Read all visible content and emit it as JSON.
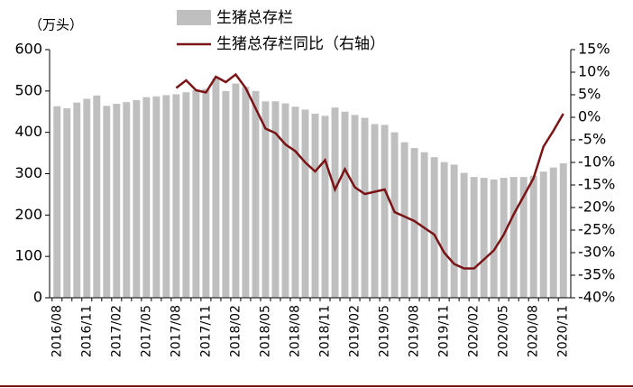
{
  "chart_data": {
    "type": "bar_line",
    "unit_label": "（万头）",
    "categories": [
      "2016/08",
      null,
      null,
      "2016/11",
      null,
      null,
      "2017/02",
      null,
      null,
      "2017/05",
      null,
      null,
      "2017/08",
      null,
      null,
      "2017/11",
      null,
      null,
      "2018/02",
      null,
      null,
      "2018/05",
      null,
      null,
      "2018/08",
      null,
      null,
      "2018/11",
      null,
      null,
      "2019/02",
      null,
      null,
      "2019/05",
      null,
      null,
      "2019/08",
      null,
      null,
      "2019/11",
      null,
      null,
      "2020/02",
      null,
      null,
      "2020/05",
      null,
      null,
      "2020/08",
      null,
      null,
      "2020/11"
    ],
    "series": [
      {
        "name": "生猪总存栏",
        "kind": "bar",
        "color": "#bfbfbf",
        "axis": "y",
        "values": [
          463,
          458,
          472,
          481,
          489,
          464,
          469,
          473,
          478,
          485,
          487,
          490,
          492,
          497,
          502,
          505,
          530,
          500,
          518,
          510,
          500,
          475,
          475,
          470,
          462,
          455,
          445,
          440,
          460,
          450,
          442,
          435,
          420,
          418,
          400,
          376,
          362,
          352,
          340,
          328,
          322,
          302,
          292,
          290,
          286,
          290,
          292,
          292,
          295,
          305,
          315,
          325
        ]
      },
      {
        "name": "生猪总存栏同比（右轴）",
        "kind": "line",
        "color": "#7b1416",
        "axis": "y2",
        "values": [
          null,
          null,
          null,
          null,
          null,
          null,
          null,
          null,
          null,
          null,
          null,
          null,
          6.5,
          8.2,
          6,
          5.5,
          9,
          7.8,
          9.5,
          6.5,
          2,
          -2.5,
          -3.5,
          -6,
          -7.5,
          -10,
          -12,
          -9.5,
          -16,
          -11.5,
          -15.5,
          -17,
          -16.5,
          -16,
          -21,
          -22,
          -23,
          -24.5,
          -26,
          -30,
          -32.5,
          -33.5,
          -33.5,
          -31.5,
          -29.5,
          -26,
          -21.5,
          -17.5,
          -13.5,
          -6.5,
          -3,
          0.8
        ]
      }
    ],
    "ylim": [
      0,
      600
    ],
    "yticks": [
      0,
      100,
      200,
      300,
      400,
      500,
      600
    ],
    "y2lim": [
      -40,
      15
    ],
    "y2ticks": [
      {
        "value": -40,
        "label": "-40%"
      },
      {
        "value": -35,
        "label": "-35%"
      },
      {
        "value": -30,
        "label": "-30%"
      },
      {
        "value": -25,
        "label": "-25%"
      },
      {
        "value": -20,
        "label": "-20%"
      },
      {
        "value": -15,
        "label": "-15%"
      },
      {
        "value": -10,
        "label": "-10%"
      },
      {
        "value": -5,
        "label": "-5%"
      },
      {
        "value": 0,
        "label": "0%"
      },
      {
        "value": 5,
        "label": "5%"
      },
      {
        "value": 10,
        "label": "10%"
      },
      {
        "value": 15,
        "label": "15%"
      }
    ],
    "legend": "top"
  }
}
